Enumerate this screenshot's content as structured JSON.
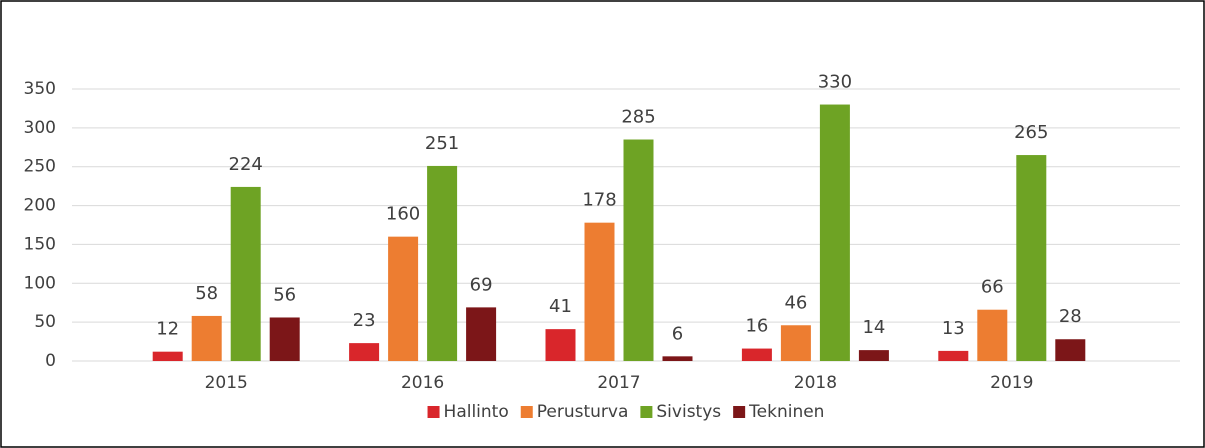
{
  "chart_data": {
    "type": "bar",
    "categories": [
      "2015",
      "2016",
      "2017",
      "2018",
      "2019"
    ],
    "series": [
      {
        "name": "Hallinto",
        "color": "#d9262b",
        "values": [
          12,
          23,
          41,
          16,
          13
        ]
      },
      {
        "name": "Perusturva",
        "color": "#ed7d31",
        "values": [
          58,
          160,
          178,
          46,
          66
        ]
      },
      {
        "name": "Sivistys",
        "color": "#6ea324",
        "values": [
          224,
          251,
          285,
          330,
          265
        ]
      },
      {
        "name": "Tekninen",
        "color": "#7c1618",
        "values": [
          56,
          69,
          6,
          14,
          28
        ]
      }
    ],
    "ylim": [
      0,
      350
    ],
    "yticks": [
      0,
      50,
      100,
      150,
      200,
      250,
      300,
      350
    ],
    "grid": true,
    "legend": "bottom"
  }
}
